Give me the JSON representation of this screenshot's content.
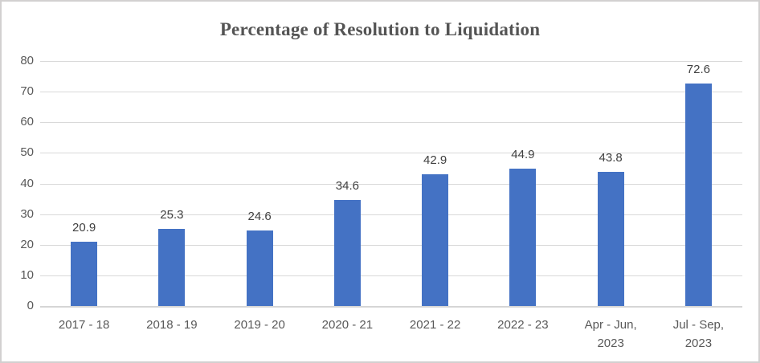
{
  "chart_data": {
    "type": "bar",
    "title": "Percentage of Resolution to Liquidation",
    "categories": [
      "2017 - 18",
      "2018 - 19",
      "2019 - 20",
      "2020 - 21",
      "2021 - 22",
      "2022 - 23",
      "Apr - Jun,\n2023",
      "Jul - Sep,\n2023"
    ],
    "values": [
      20.9,
      25.3,
      24.6,
      34.6,
      42.9,
      44.9,
      43.8,
      72.6
    ],
    "value_labels": [
      "20.9",
      "25.3",
      "24.6",
      "34.6",
      "42.9",
      "44.9",
      "43.8",
      "72.6"
    ],
    "ytick_labels": [
      "0",
      "10",
      "20",
      "30",
      "40",
      "50",
      "60",
      "70",
      "80"
    ],
    "xlabel": "",
    "ylabel": "",
    "ylim": [
      0,
      80
    ],
    "ytick_step": 10,
    "grid": true,
    "legend": false,
    "colors": {
      "bar": "#4472C4",
      "gridline": "#D9D9D9",
      "axis_line": "#D6D6D6",
      "value_label": "#404040",
      "tick_label": "#595959",
      "title": "#545454",
      "background": "#FFFFFF",
      "frame_border": "#D2D0D0"
    }
  }
}
